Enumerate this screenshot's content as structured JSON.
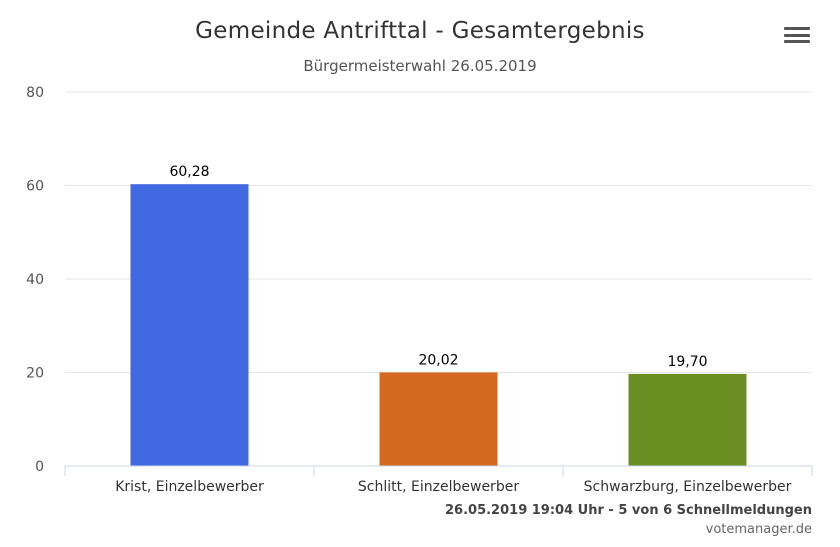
{
  "title": "Gemeinde Antrifttal - Gesamtergebnis",
  "subtitle": "Bürgermeisterwahl 26.05.2019",
  "footer": {
    "status": "26.05.2019 19:04 Uhr - 5 von 6 Schnellmeldungen",
    "credit": "votemanager.de"
  },
  "menu_icon": "hamburger-menu-icon",
  "chart_data": {
    "type": "bar",
    "categories": [
      "Krist, Einzelbewerber",
      "Schlitt, Einzelbewerber",
      "Schwarzburg, Einzelbewerber"
    ],
    "values": [
      60.28,
      20.02,
      19.7
    ],
    "data_labels": [
      "60,28",
      "20,02",
      "19,70"
    ],
    "colors": [
      "#4169e1",
      "#d2691e",
      "#6b8e23"
    ],
    "ylim": [
      0,
      80
    ],
    "yticks": [
      0,
      20,
      40,
      60,
      80
    ],
    "grid": true,
    "legend": "none"
  }
}
